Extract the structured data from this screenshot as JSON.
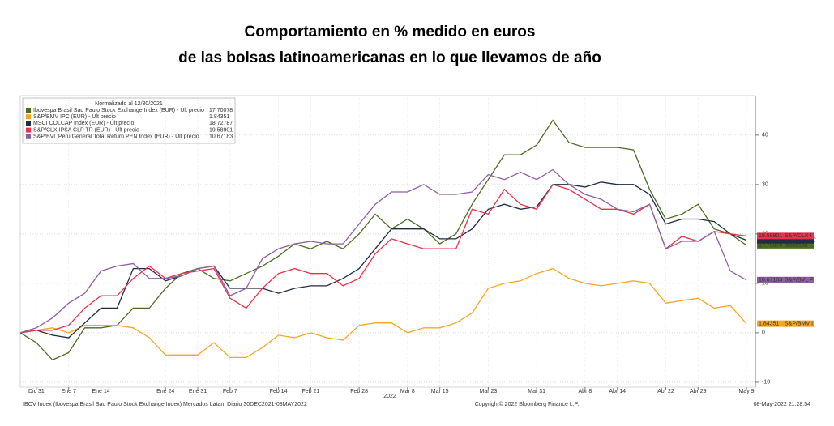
{
  "chart_data": {
    "type": "line",
    "title": [
      "Comportamiento en % medido en euros",
      "de las bolsas latinoamericanas en lo que llevamos de año"
    ],
    "legend_title": "Normalizado al 12/30/2021",
    "categories": [
      null,
      "Dic 31",
      null,
      "Ene 7",
      null,
      "Ene 14",
      null,
      null,
      null,
      "Ene 24",
      null,
      "Ene 31",
      null,
      "Feb 7",
      null,
      null,
      "Feb 14",
      null,
      "Feb 21",
      null,
      null,
      "Feb 28",
      null,
      null,
      "Mar 8",
      null,
      "Mar 15",
      null,
      null,
      "Mar 23",
      null,
      null,
      "Mar 31",
      null,
      null,
      "Abr 8",
      null,
      "Abr 14",
      null,
      null,
      "Abr 22",
      null,
      "Abr 29",
      null,
      null,
      "May 9"
    ],
    "xlabel": "2022",
    "series": [
      {
        "name": "Ibovespa Brasil Sao Paulo Stock Exchange Index (EUR) - Últ precio",
        "tag": "Ibovespa",
        "color": "#4b6b1e",
        "values": [
          0,
          -2,
          -5.5,
          -4,
          1,
          1,
          1.5,
          5,
          5,
          9,
          12,
          13,
          11,
          10.5,
          12,
          13.5,
          15.5,
          18,
          17,
          18.5,
          17,
          20,
          24,
          21,
          23,
          21,
          18,
          20,
          26,
          31,
          36,
          36,
          38,
          43,
          38.5,
          37.5,
          37.5,
          37.5,
          37,
          29,
          23,
          24,
          26,
          21,
          20,
          17.70078
        ]
      },
      {
        "name": "S&P/BMV IPC (EUR) - Últ precio",
        "tag": "S&P/BMV I",
        "color": "#f5a623",
        "values": [
          0,
          0.5,
          1,
          0,
          1.5,
          1.5,
          1.5,
          1,
          -1,
          -4.5,
          -4.5,
          -4.5,
          -2,
          -5,
          -5,
          -3,
          -0.5,
          -1,
          0,
          -1,
          -1.5,
          1.5,
          2,
          2,
          0,
          1,
          1,
          2,
          4,
          9,
          10,
          10.5,
          12,
          13,
          11,
          10,
          9.5,
          10,
          10.5,
          10,
          6,
          6.5,
          7,
          5,
          5.5,
          1.84351
        ]
      },
      {
        "name": "MSCI COLCAP Index (EUR) - Últ precio",
        "tag": "MSCI COLC",
        "color": "#1f2a44",
        "values": [
          0,
          0.5,
          -0.5,
          -1,
          2,
          5,
          5,
          13,
          13,
          10.5,
          11.5,
          13,
          13.5,
          9,
          9,
          9,
          8,
          9,
          9.5,
          9.5,
          11,
          13,
          17,
          21,
          21,
          21,
          19,
          19,
          21,
          25,
          26,
          25,
          25.5,
          30,
          30,
          29.5,
          30.5,
          30,
          30,
          28,
          22,
          23,
          23,
          22.5,
          20,
          18.72787
        ]
      },
      {
        "name": "S&P/CLX IPSA CLP TR (EUR) - Últ precio",
        "tag": "S&P/CLX I",
        "color": "#e8334a",
        "values": [
          0,
          0.5,
          0.5,
          1.5,
          5,
          7.5,
          7.5,
          11,
          13.5,
          11,
          12,
          12.5,
          13,
          7,
          5,
          9,
          12,
          13,
          12,
          12,
          9.5,
          11,
          16,
          19,
          18,
          17,
          17,
          17,
          25,
          24,
          29,
          26,
          25,
          30,
          29,
          27,
          25,
          25,
          24,
          26,
          17,
          19.5,
          18.5,
          20.5,
          20,
          19.58901
        ]
      },
      {
        "name": "S&P/BVL Peru General Total Return PEN Index (EUR) - Últ precio",
        "tag": "S&P/BVL P",
        "color": "#8e5ea2",
        "values": [
          0,
          1,
          3,
          6,
          8,
          12.5,
          13.5,
          14,
          11,
          11,
          11.5,
          13,
          13.5,
          7.5,
          9,
          15,
          17,
          18,
          18.5,
          18,
          18,
          22,
          26,
          28.5,
          28.5,
          30,
          28,
          28,
          28.5,
          32,
          31,
          32.5,
          31,
          33,
          30,
          28,
          27,
          25,
          24.5,
          26,
          17,
          18.5,
          18.5,
          20.5,
          12.5,
          10.67183
        ]
      }
    ],
    "ylim": [
      -11,
      48
    ],
    "yticks": [
      -10,
      0,
      10,
      20,
      30,
      40
    ],
    "grid": true,
    "footer": [
      "IBOV Index (Ibovespa Brasil Sao Paulo Stock Exchange Index) Mercados Latam  Diario 30DEC2021-08MAY2022",
      "Copyright© 2022 Bloomberg Finance L.P.",
      "08-May-2022 21:28:54"
    ]
  }
}
